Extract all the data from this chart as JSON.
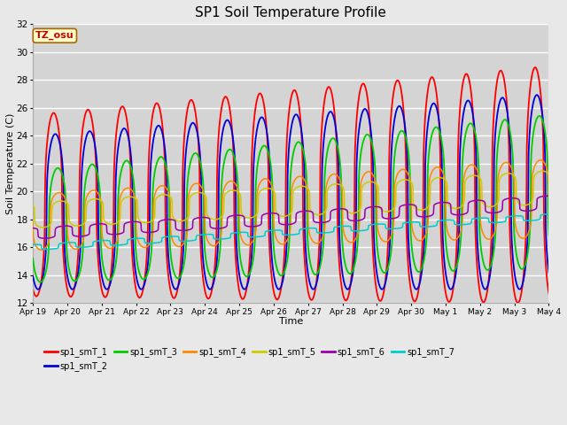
{
  "title": "SP1 Soil Temperature Profile",
  "xlabel": "Time",
  "ylabel": "Soil Temperature (C)",
  "ylim": [
    12,
    32
  ],
  "yticks": [
    12,
    14,
    16,
    18,
    20,
    22,
    24,
    26,
    28,
    30,
    32
  ],
  "duration_days": 15,
  "n_points": 1500,
  "tz_label": "TZ_osu",
  "series_colors": [
    "#ff0000",
    "#0000dd",
    "#00cc00",
    "#ff8800",
    "#cccc00",
    "#9900aa",
    "#00cccc"
  ],
  "series_names": [
    "sp1_smT_1",
    "sp1_smT_2",
    "sp1_smT_3",
    "sp1_smT_4",
    "sp1_smT_5",
    "sp1_smT_6",
    "sp1_smT_7"
  ],
  "bg_color": "#e8e8e8",
  "plot_bg_color": "#d4d4d4",
  "grid_color": "#ffffff",
  "tick_dates": [
    "Apr 19",
    "Apr 20",
    "Apr 21",
    "Apr 22",
    "Apr 23",
    "Apr 24",
    "Apr 25",
    "Apr 26",
    "Apr 27",
    "Apr 28",
    "Apr 29",
    "Apr 30",
    "May 1",
    "May 2",
    "May 3",
    "May 4"
  ]
}
